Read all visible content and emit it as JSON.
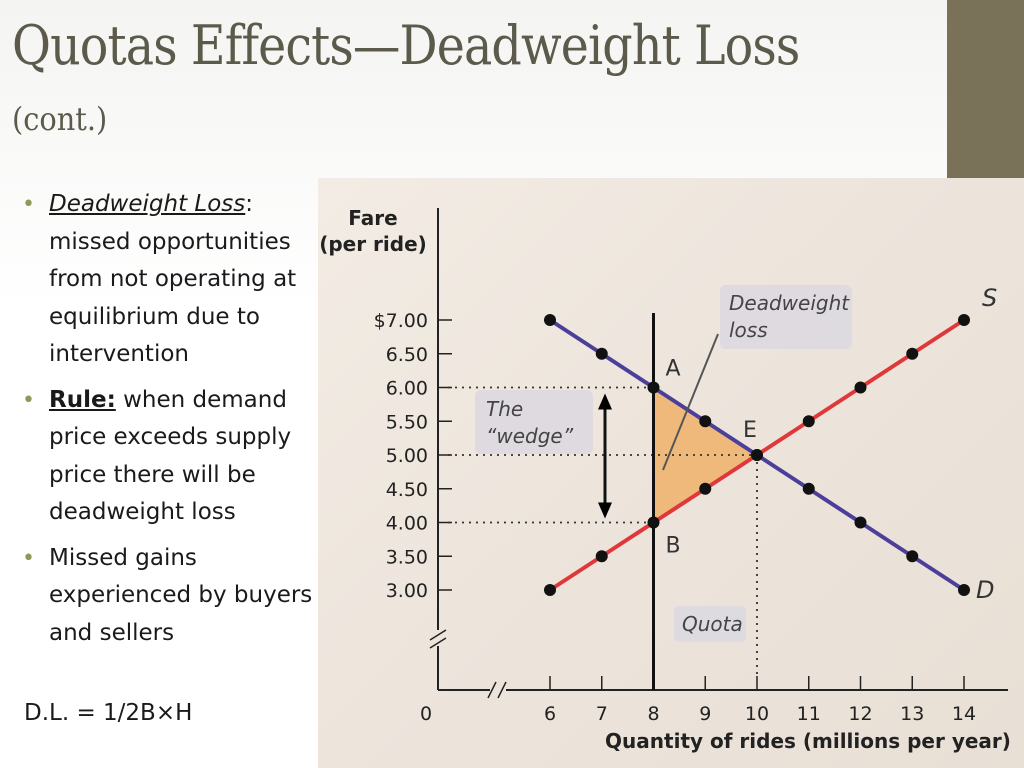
{
  "slide": {
    "title": "Quotas Effects—Deadweight Loss",
    "subtitle": "(cont.)",
    "accent_color": "#7a7258"
  },
  "bullets": [
    {
      "term": "Deadweight Loss",
      "text": "missed opportunities from not operating at equilibrium due to intervention"
    },
    {
      "term": "Rule:",
      "text": " when demand price exceeds supply price there will be deadweight loss"
    },
    {
      "term": "",
      "text": "Missed gains experienced by buyers and sellers"
    }
  ],
  "formula": "D.L. = 1/2B×H",
  "chart_data": {
    "type": "line",
    "ylabel_line1": "Fare",
    "ylabel_line2": "(per ride)",
    "xlabel": "Quantity of rides (millions per year)",
    "origin_label": "0",
    "xlim": [
      6,
      14
    ],
    "ylim": [
      3.0,
      7.0
    ],
    "x_ticks": [
      6,
      7,
      8,
      9,
      10,
      11,
      12,
      13,
      14
    ],
    "x_tick_labels": [
      "6",
      "7",
      "8",
      "9",
      "10",
      "11",
      "12",
      "13",
      "14"
    ],
    "y_ticks": [
      7.0,
      6.5,
      6.0,
      5.5,
      5.0,
      4.5,
      4.0,
      3.5,
      3.0
    ],
    "y_tick_labels": [
      "$7.00",
      "6.50",
      "6.00",
      "5.50",
      "5.00",
      "4.50",
      "4.00",
      "3.50",
      "3.00"
    ],
    "series": [
      {
        "name": "D",
        "color": "#4b3f9a",
        "x": [
          6,
          7,
          8,
          9,
          10,
          11,
          12,
          13,
          14
        ],
        "y": [
          7.0,
          6.5,
          6.0,
          5.5,
          5.0,
          4.5,
          4.0,
          3.5,
          3.0
        ]
      },
      {
        "name": "S",
        "color": "#e0383a",
        "x": [
          6,
          7,
          8,
          9,
          10,
          11,
          12,
          13,
          14
        ],
        "y": [
          3.0,
          3.5,
          4.0,
          4.5,
          5.0,
          5.5,
          6.0,
          6.5,
          7.0
        ]
      }
    ],
    "quota": {
      "x": 8,
      "label": "Quota"
    },
    "points": [
      {
        "label": "A",
        "x": 8,
        "y": 6.0
      },
      {
        "label": "B",
        "x": 8,
        "y": 4.0
      },
      {
        "label": "E",
        "x": 10,
        "y": 5.0
      }
    ],
    "deadweight_triangle": {
      "vertices": [
        [
          8,
          6.0
        ],
        [
          8,
          4.0
        ],
        [
          10,
          5.0
        ]
      ],
      "color": "#eeb26a"
    },
    "annotations": {
      "deadweight": [
        "Deadweight",
        "loss"
      ],
      "wedge": [
        "The",
        "“wedge”"
      ]
    }
  }
}
